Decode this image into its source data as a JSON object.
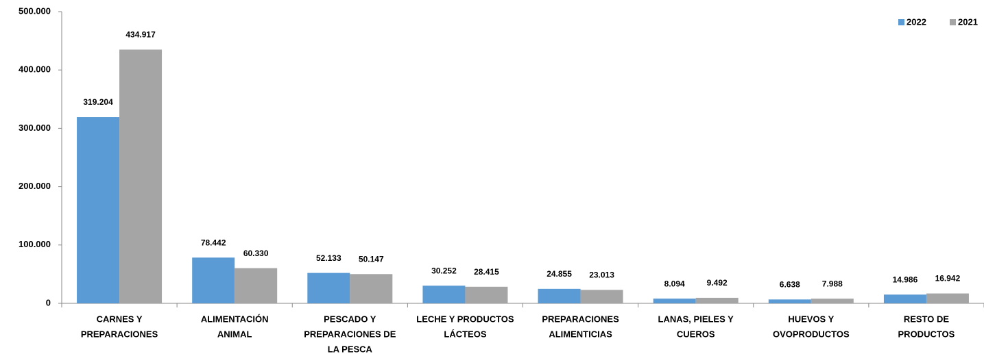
{
  "chart_data": {
    "type": "bar",
    "categories": [
      [
        "CARNES Y",
        "PREPARACIONES"
      ],
      [
        "ALIMENTACIÓN",
        "ANIMAL"
      ],
      [
        "PESCADO Y",
        "PREPARACIONES DE",
        "LA PESCA"
      ],
      [
        "LECHE Y PRODUCTOS",
        "LÁCTEOS"
      ],
      [
        "PREPARACIONES",
        "ALIMENTICIAS"
      ],
      [
        "LANAS, PIELES Y",
        "CUEROS"
      ],
      [
        "HUEVOS Y",
        "OVOPRODUCTOS"
      ],
      [
        "RESTO DE",
        "PRODUCTOS"
      ]
    ],
    "series": [
      {
        "name": "2022",
        "color": "#5b9bd5",
        "values": [
          319204,
          78442,
          52133,
          30252,
          24855,
          8094,
          6638,
          14986
        ],
        "value_labels": [
          "319.204",
          "78.442",
          "52.133",
          "30.252",
          "24.855",
          "8.094",
          "6.638",
          "14.986"
        ]
      },
      {
        "name": "2021",
        "color": "#a5a5a5",
        "values": [
          434917,
          60330,
          50147,
          28415,
          23013,
          9492,
          7988,
          16942
        ],
        "value_labels": [
          "434.917",
          "60.330",
          "50.147",
          "28.415",
          "23.013",
          "9.492",
          "7.988",
          "16.942"
        ]
      }
    ],
    "ylim": [
      0,
      500000
    ],
    "yticks": [
      0,
      {
        "value": 100000,
        "label": "100.000"
      },
      {
        "value": 200000,
        "label": "200.000"
      },
      {
        "value": 300000,
        "label": "300.000"
      },
      {
        "value": 400000,
        "label": "400.000"
      },
      {
        "value": 500000,
        "label": "500.000"
      }
    ],
    "grid": false,
    "legend": "top-right"
  }
}
